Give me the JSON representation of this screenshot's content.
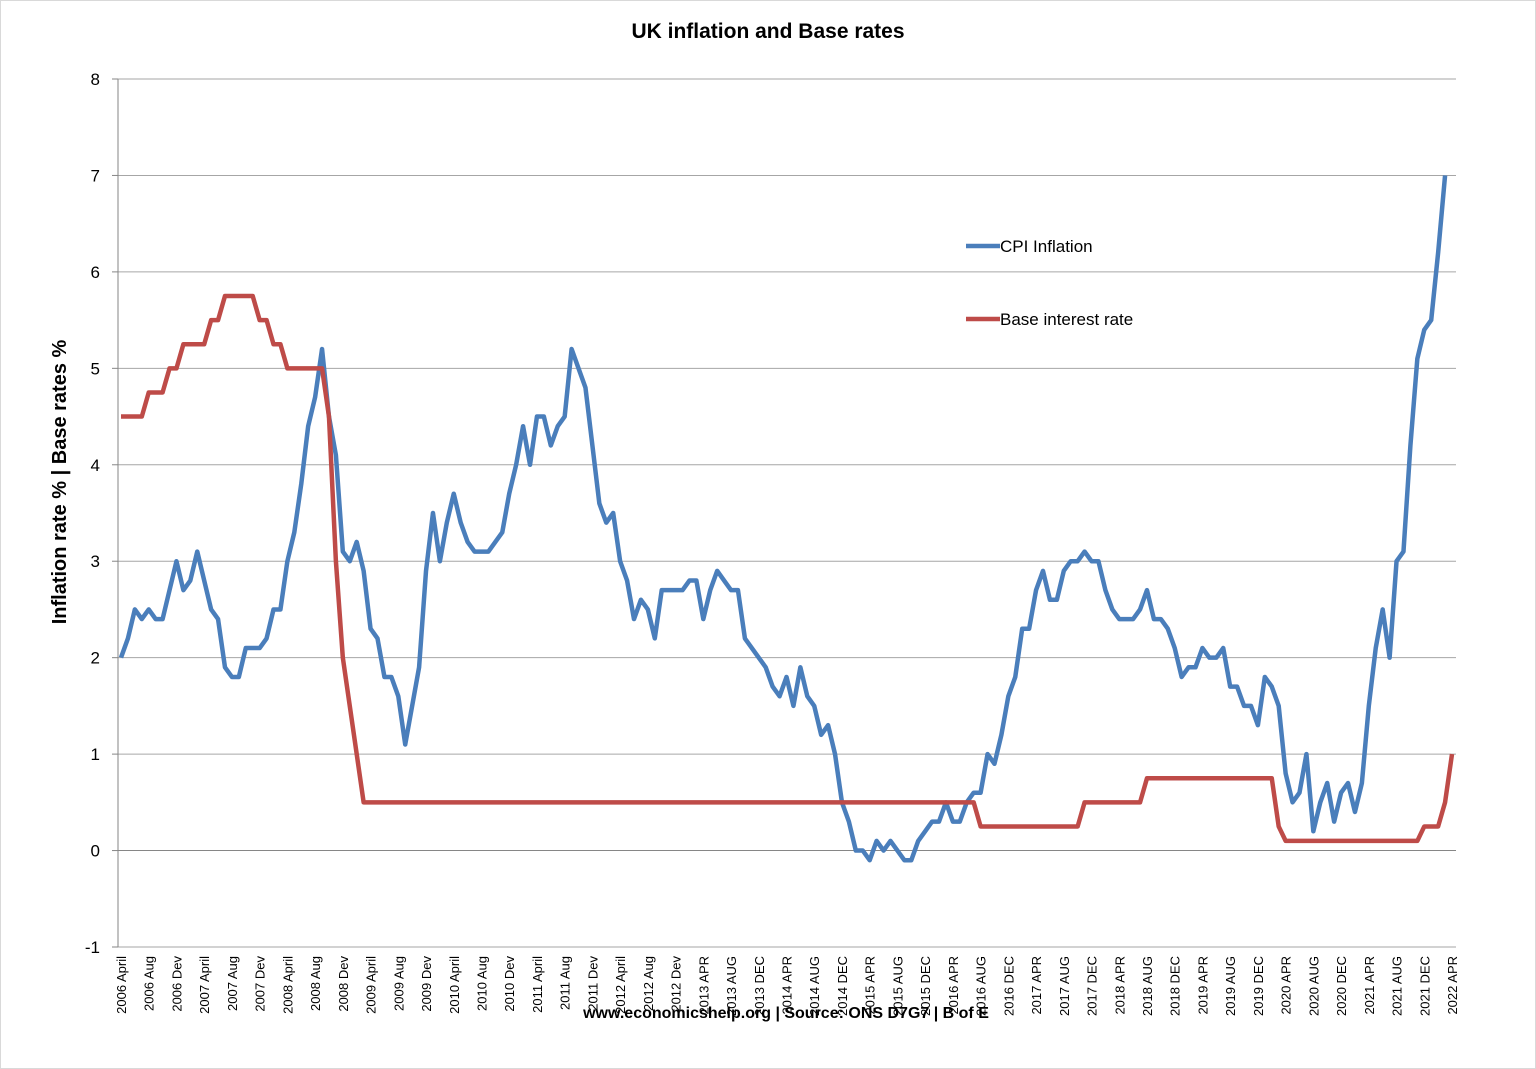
{
  "chart_data": {
    "type": "line",
    "title": "UK inflation and Base rates",
    "y_label": "Inflation rate % | Base rates %",
    "footer": "www.economicshelp.org | Source: ONS D7G7 | B of E",
    "ylim": [
      -1,
      8
    ],
    "yticks": [
      -1,
      0,
      1,
      2,
      3,
      4,
      5,
      6,
      7,
      8
    ],
    "grid": true,
    "legend": "upper right",
    "categories": [
      "2006 April",
      null,
      null,
      null,
      "2006 Aug",
      null,
      null,
      null,
      "2006 Dev",
      null,
      null,
      null,
      "2007 April",
      null,
      null,
      null,
      "2007 Aug",
      null,
      null,
      null,
      "2007 Dev",
      null,
      null,
      null,
      "2008 April",
      null,
      null,
      null,
      "2008 Aug",
      null,
      null,
      null,
      "2008 Dev",
      null,
      null,
      null,
      "2009 April",
      null,
      null,
      null,
      "2009 Aug",
      null,
      null,
      null,
      "2009 Dev",
      null,
      null,
      null,
      "2010 April",
      null,
      null,
      null,
      "2010 Aug",
      null,
      null,
      null,
      "2010 Dev",
      null,
      null,
      null,
      "2011 April",
      null,
      null,
      null,
      "2011 Aug",
      null,
      null,
      null,
      "2011 Dev",
      null,
      null,
      null,
      "2012 April",
      null,
      null,
      null,
      "2012 Aug",
      null,
      null,
      null,
      "2012 Dev",
      null,
      null,
      null,
      "2013 APR",
      null,
      null,
      null,
      "2013 AUG",
      null,
      null,
      null,
      "2013 DEC",
      null,
      null,
      null,
      "2014 APR",
      null,
      null,
      null,
      "2014 AUG",
      null,
      null,
      null,
      "2014 DEC",
      null,
      null,
      null,
      "2015 APR",
      null,
      null,
      null,
      "2015 AUG",
      null,
      null,
      null,
      "2015 DEC",
      null,
      null,
      null,
      "2016 APR",
      null,
      null,
      null,
      "2016 AUG",
      null,
      null,
      null,
      "2016 DEC",
      null,
      null,
      null,
      "2017 APR",
      null,
      null,
      null,
      "2017 AUG",
      null,
      null,
      null,
      "2017 DEC",
      null,
      null,
      null,
      "2018 APR",
      null,
      null,
      null,
      "2018 AUG",
      null,
      null,
      null,
      "2018 DEC",
      null,
      null,
      null,
      "2019 APR",
      null,
      null,
      null,
      "2019 AUG",
      null,
      null,
      null,
      "2019 DEC",
      null,
      null,
      null,
      "2020 APR",
      null,
      null,
      null,
      "2020 AUG",
      null,
      null,
      null,
      "2020 DEC",
      null,
      null,
      null,
      "2021 APR",
      null,
      null,
      null,
      "2021 AUG",
      null,
      null,
      null,
      "2021 DEC",
      null,
      null,
      null,
      "2022 APR"
    ],
    "series": [
      {
        "name": "CPI Inflation",
        "color": "#4a7ebb",
        "values": [
          2.0,
          2.2,
          2.5,
          2.4,
          2.5,
          2.4,
          2.4,
          2.7,
          3.0,
          2.7,
          2.8,
          3.1,
          2.8,
          2.5,
          2.4,
          1.9,
          1.8,
          1.8,
          2.1,
          2.1,
          2.1,
          2.2,
          2.5,
          2.5,
          3.0,
          3.3,
          3.8,
          4.4,
          4.7,
          5.2,
          4.5,
          4.1,
          3.1,
          3.0,
          3.2,
          2.9,
          2.3,
          2.2,
          1.8,
          1.8,
          1.6,
          1.1,
          1.5,
          1.9,
          2.9,
          3.5,
          3.0,
          3.4,
          3.7,
          3.4,
          3.2,
          3.1,
          3.1,
          3.1,
          3.2,
          3.3,
          3.7,
          4.0,
          4.4,
          4.0,
          4.5,
          4.5,
          4.2,
          4.4,
          4.5,
          5.2,
          5.0,
          4.8,
          4.2,
          3.6,
          3.4,
          3.5,
          3.0,
          2.8,
          2.4,
          2.6,
          2.5,
          2.2,
          2.7,
          2.7,
          2.7,
          2.7,
          2.8,
          2.8,
          2.4,
          2.7,
          2.9,
          2.8,
          2.7,
          2.7,
          2.2,
          2.1,
          2.0,
          1.9,
          1.7,
          1.6,
          1.8,
          1.5,
          1.9,
          1.6,
          1.5,
          1.2,
          1.3,
          1.0,
          0.5,
          0.3,
          0.0,
          0.0,
          -0.1,
          0.1,
          0.0,
          0.1,
          0.0,
          -0.1,
          -0.1,
          0.1,
          0.2,
          0.3,
          0.3,
          0.5,
          0.3,
          0.3,
          0.5,
          0.6,
          0.6,
          1.0,
          0.9,
          1.2,
          1.6,
          1.8,
          2.3,
          2.3,
          2.7,
          2.9,
          2.6,
          2.6,
          2.9,
          3.0,
          3.0,
          3.1,
          3.0,
          3.0,
          2.7,
          2.5,
          2.4,
          2.4,
          2.4,
          2.5,
          2.7,
          2.4,
          2.4,
          2.3,
          2.1,
          1.8,
          1.9,
          1.9,
          2.1,
          2.0,
          2.0,
          2.1,
          1.7,
          1.7,
          1.5,
          1.5,
          1.3,
          1.8,
          1.7,
          1.5,
          0.8,
          0.5,
          0.6,
          1.0,
          0.2,
          0.5,
          0.7,
          0.3,
          0.6,
          0.7,
          0.4,
          0.7,
          1.5,
          2.1,
          2.5,
          2.0,
          3.0,
          3.1,
          4.2,
          5.1,
          5.4,
          5.5,
          6.2,
          7.0,
          null
        ]
      },
      {
        "name": "Base interest rate",
        "color": "#be4b48",
        "values": [
          4.5,
          4.5,
          4.5,
          4.5,
          4.75,
          4.75,
          4.75,
          5.0,
          5.0,
          5.25,
          5.25,
          5.25,
          5.25,
          5.5,
          5.5,
          5.75,
          5.75,
          5.75,
          5.75,
          5.75,
          5.5,
          5.5,
          5.25,
          5.25,
          5.0,
          5.0,
          5.0,
          5.0,
          5.0,
          5.0,
          4.5,
          3.0,
          2.0,
          1.5,
          1.0,
          0.5,
          0.5,
          0.5,
          0.5,
          0.5,
          0.5,
          0.5,
          0.5,
          0.5,
          0.5,
          0.5,
          0.5,
          0.5,
          0.5,
          0.5,
          0.5,
          0.5,
          0.5,
          0.5,
          0.5,
          0.5,
          0.5,
          0.5,
          0.5,
          0.5,
          0.5,
          0.5,
          0.5,
          0.5,
          0.5,
          0.5,
          0.5,
          0.5,
          0.5,
          0.5,
          0.5,
          0.5,
          0.5,
          0.5,
          0.5,
          0.5,
          0.5,
          0.5,
          0.5,
          0.5,
          0.5,
          0.5,
          0.5,
          0.5,
          0.5,
          0.5,
          0.5,
          0.5,
          0.5,
          0.5,
          0.5,
          0.5,
          0.5,
          0.5,
          0.5,
          0.5,
          0.5,
          0.5,
          0.5,
          0.5,
          0.5,
          0.5,
          0.5,
          0.5,
          0.5,
          0.5,
          0.5,
          0.5,
          0.5,
          0.5,
          0.5,
          0.5,
          0.5,
          0.5,
          0.5,
          0.5,
          0.5,
          0.5,
          0.5,
          0.5,
          0.5,
          0.5,
          0.5,
          0.5,
          0.25,
          0.25,
          0.25,
          0.25,
          0.25,
          0.25,
          0.25,
          0.25,
          0.25,
          0.25,
          0.25,
          0.25,
          0.25,
          0.25,
          0.25,
          0.5,
          0.5,
          0.5,
          0.5,
          0.5,
          0.5,
          0.5,
          0.5,
          0.5,
          0.75,
          0.75,
          0.75,
          0.75,
          0.75,
          0.75,
          0.75,
          0.75,
          0.75,
          0.75,
          0.75,
          0.75,
          0.75,
          0.75,
          0.75,
          0.75,
          0.75,
          0.75,
          0.75,
          0.25,
          0.1,
          0.1,
          0.1,
          0.1,
          0.1,
          0.1,
          0.1,
          0.1,
          0.1,
          0.1,
          0.1,
          0.1,
          0.1,
          0.1,
          0.1,
          0.1,
          0.1,
          0.1,
          0.1,
          0.1,
          0.25,
          0.25,
          0.25,
          0.5,
          1.0
        ]
      }
    ]
  }
}
